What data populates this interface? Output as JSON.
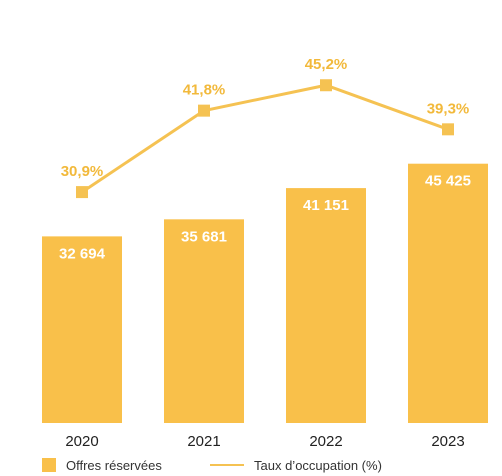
{
  "chart_data": {
    "type": "bar",
    "categories": [
      "2020",
      "2021",
      "2022",
      "2023"
    ],
    "series": [
      {
        "name": "Offres réservées",
        "kind": "bar",
        "values": [
          32694,
          35681,
          41151,
          45425
        ],
        "labels": [
          "32 694",
          "35 681",
          "41 151",
          "45 425"
        ]
      },
      {
        "name": "Taux d’occupation (%)",
        "kind": "line",
        "values": [
          30.9,
          41.8,
          45.2,
          39.3
        ],
        "labels": [
          "30,9%",
          "41,8%",
          "45,2%",
          "39,3%"
        ]
      }
    ],
    "ylim": [
      0,
      72000
    ],
    "y2lim": [
      0,
      55
    ],
    "grid": false,
    "legend": "bottom",
    "colors": {
      "bar": "#F9C04A",
      "line": "#F5C252",
      "line_label": "#F2B93B"
    }
  }
}
